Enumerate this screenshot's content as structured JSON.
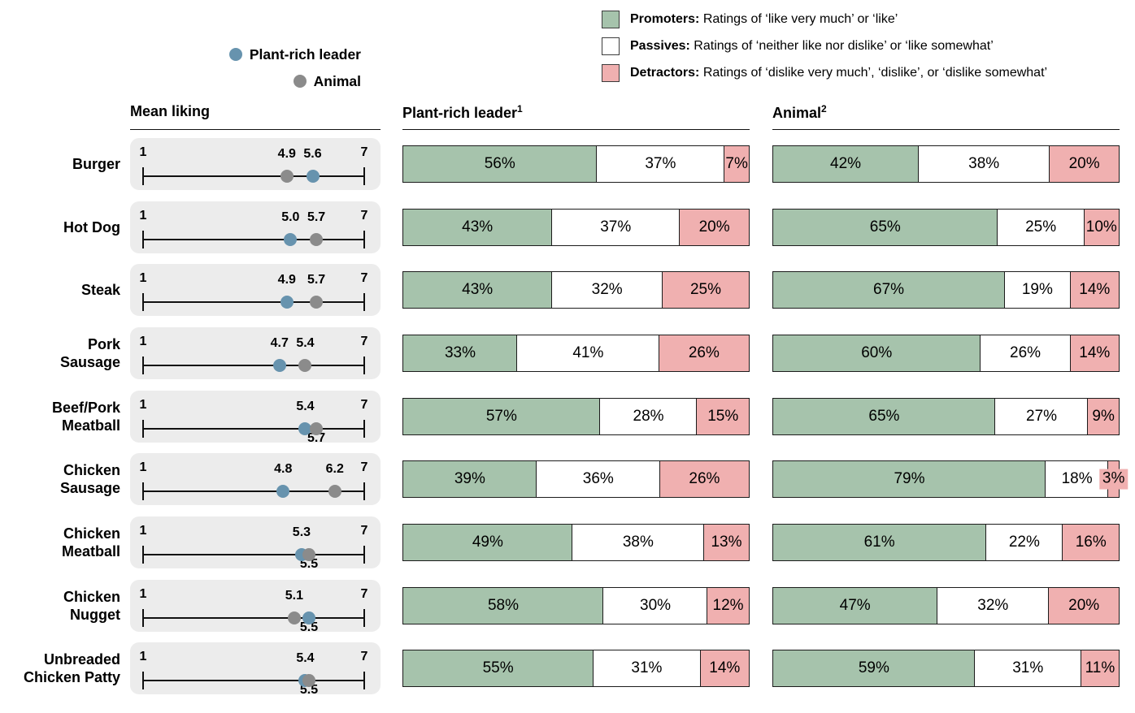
{
  "legend": {
    "series": [
      {
        "name": "Plant-rich leader",
        "color": "#6793ae"
      },
      {
        "name": "Animal",
        "color": "#8b8b8b"
      }
    ],
    "categories": [
      {
        "head": "Promoters:",
        "desc": "Ratings of ‘like very much’ or ‘like’",
        "color": "#a6c3ac"
      },
      {
        "head": "Passives:",
        "desc": "Ratings of ‘neither like nor dislike’ or ‘like somewhat’",
        "color": "#ffffff"
      },
      {
        "head": "Detractors:",
        "desc": "Ratings of ‘dislike very much’, ‘dislike’, or ‘dislike somewhat’",
        "color": "#f0b0b0"
      }
    ]
  },
  "columns": {
    "mean": "Mean liking",
    "plant": {
      "label": "Plant-rich leader",
      "sup": "1"
    },
    "animal": {
      "label": "Animal",
      "sup": "2"
    }
  },
  "chart_data": {
    "type": "bar",
    "subtype": "100%-stacked horizontal bars (promoters/passives/detractors) paired with 1-7 mean-liking dot plot",
    "dot_scale": {
      "min": 1,
      "max": 7,
      "min_label": "1",
      "max_label": "7"
    },
    "stack_order": [
      "promoters",
      "passives",
      "detractors"
    ],
    "colors": {
      "promoters": "#a6c3ac",
      "passives": "#ffffff",
      "detractors": "#f0b0b0",
      "plant_dot": "#6793ae",
      "animal_dot": "#8b8b8b",
      "panel_bg": "#ececec",
      "border": "#1c1c1c"
    },
    "rows": [
      {
        "label": "Burger",
        "plant_mean": 5.6,
        "plant_mean_label": "5.6",
        "plant_label_pos": "top",
        "animal_mean": 4.9,
        "animal_mean_label": "4.9",
        "animal_label_pos": "top",
        "plant_bar": [
          56,
          37,
          7
        ],
        "animal_bar": [
          42,
          38,
          20
        ],
        "animal_outside_label": false
      },
      {
        "label": "Hot Dog",
        "plant_mean": 5.0,
        "plant_mean_label": "5.0",
        "plant_label_pos": "top",
        "animal_mean": 5.7,
        "animal_mean_label": "5.7",
        "animal_label_pos": "top",
        "plant_bar": [
          43,
          37,
          20
        ],
        "animal_bar": [
          65,
          25,
          10
        ],
        "animal_outside_label": false
      },
      {
        "label": "Steak",
        "plant_mean": 4.9,
        "plant_mean_label": "4.9",
        "plant_label_pos": "top",
        "animal_mean": 5.7,
        "animal_mean_label": "5.7",
        "animal_label_pos": "top",
        "plant_bar": [
          43,
          32,
          25
        ],
        "animal_bar": [
          67,
          19,
          14
        ],
        "animal_outside_label": false
      },
      {
        "label": "Pork\nSausage",
        "plant_mean": 4.7,
        "plant_mean_label": "4.7",
        "plant_label_pos": "top",
        "animal_mean": 5.4,
        "animal_mean_label": "5.4",
        "animal_label_pos": "top",
        "plant_bar": [
          33,
          41,
          26
        ],
        "animal_bar": [
          60,
          26,
          14
        ],
        "animal_outside_label": false
      },
      {
        "label": "Beef/Pork\nMeatball",
        "plant_mean": 5.4,
        "plant_mean_label": "5.4",
        "plant_label_pos": "top",
        "animal_mean": 5.7,
        "animal_mean_label": "5.7",
        "animal_label_pos": "bottom",
        "plant_bar": [
          57,
          28,
          15
        ],
        "animal_bar": [
          65,
          27,
          9
        ],
        "animal_outside_label": false
      },
      {
        "label": "Chicken\nSausage",
        "plant_mean": 4.8,
        "plant_mean_label": "4.8",
        "plant_label_pos": "top",
        "animal_mean": 6.2,
        "animal_mean_label": "6.2",
        "animal_label_pos": "top",
        "plant_bar": [
          39,
          36,
          26
        ],
        "animal_bar": [
          79,
          18,
          3
        ],
        "animal_outside_label": true
      },
      {
        "label": "Chicken\nMeatball",
        "plant_mean": 5.3,
        "plant_mean_label": "5.3",
        "plant_label_pos": "top",
        "animal_mean": 5.5,
        "animal_mean_label": "5.5",
        "animal_label_pos": "bottom",
        "plant_bar": [
          49,
          38,
          13
        ],
        "animal_bar": [
          61,
          22,
          16
        ],
        "animal_outside_label": false
      },
      {
        "label": "Chicken\nNugget",
        "plant_mean": 5.5,
        "plant_mean_label": "5.5",
        "plant_label_pos": "bottom",
        "animal_mean": 5.1,
        "animal_mean_label": "5.1",
        "animal_label_pos": "top",
        "plant_bar": [
          58,
          30,
          12
        ],
        "animal_bar": [
          47,
          32,
          20
        ],
        "animal_outside_label": false
      },
      {
        "label": "Unbreaded\nChicken Patty",
        "plant_mean": 5.4,
        "plant_mean_label": "5.4",
        "plant_label_pos": "top",
        "animal_mean": 5.5,
        "animal_mean_label": "5.5",
        "animal_label_pos": "bottom",
        "plant_bar": [
          55,
          31,
          14
        ],
        "animal_bar": [
          59,
          31,
          11
        ],
        "animal_outside_label": false
      }
    ]
  }
}
